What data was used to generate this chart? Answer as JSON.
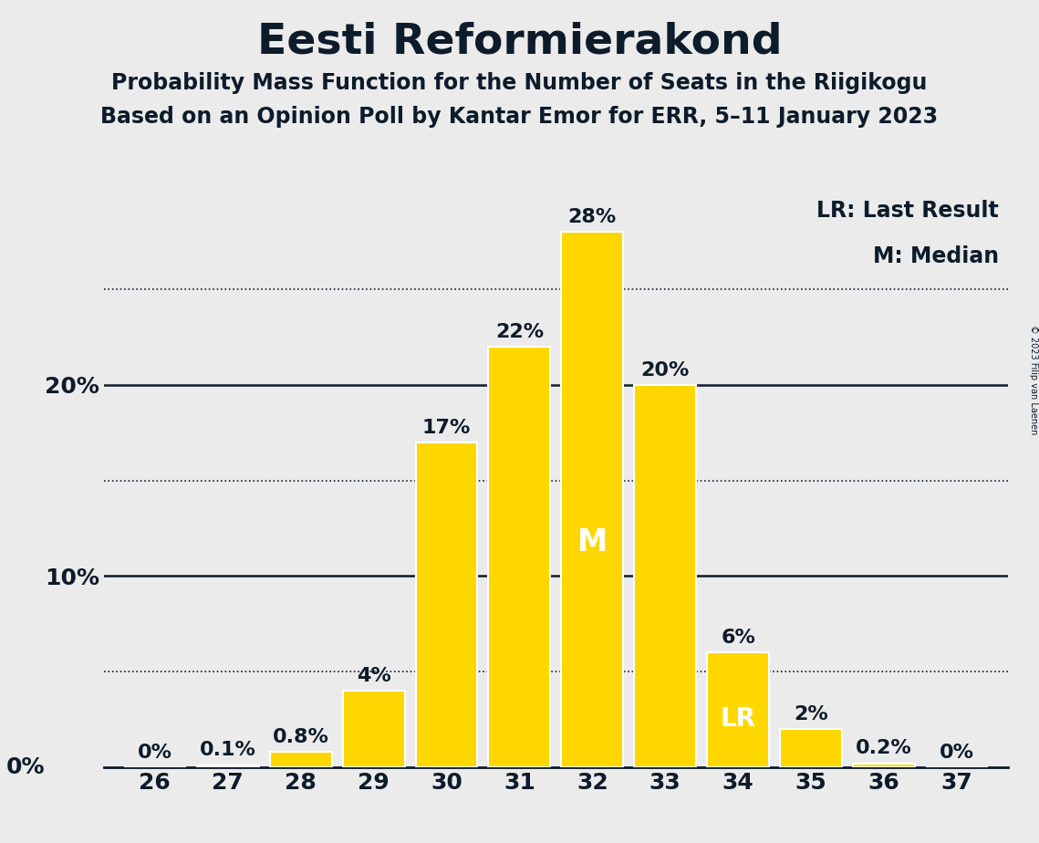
{
  "title": "Eesti Reformierakond",
  "subtitle1": "Probability Mass Function for the Number of Seats in the Riigikogu",
  "subtitle2": "Based on an Opinion Poll by Kantar Emor for ERR, 5–11 January 2023",
  "copyright_text": "© 2023 Filip van Laenen",
  "seats": [
    26,
    27,
    28,
    29,
    30,
    31,
    32,
    33,
    34,
    35,
    36,
    37
  ],
  "probabilities": [
    0.0,
    0.1,
    0.8,
    4.0,
    17.0,
    22.0,
    28.0,
    20.0,
    6.0,
    2.0,
    0.2,
    0.0
  ],
  "bar_color": "#FFD700",
  "bar_edge_color": "#FFFFFF",
  "median_seat": 32,
  "last_result_seat": 34,
  "background_color": "#EBEBEB",
  "text_color": "#0D1B2A",
  "title_fontsize": 34,
  "subtitle_fontsize": 17,
  "label_fontsize": 16,
  "tick_fontsize": 18,
  "legend_fontsize": 17,
  "ylim": [
    0,
    30
  ],
  "legend_text1": "LR: Last Result",
  "legend_text2": "M: Median",
  "dotted_lines": [
    5,
    15,
    25
  ],
  "solid_lines": [
    10,
    20
  ],
  "prob_labels": [
    "0%",
    "0.1%",
    "0.8%",
    "4%",
    "17%",
    "22%",
    "28%",
    "20%",
    "6%",
    "2%",
    "0.2%",
    "0%"
  ]
}
